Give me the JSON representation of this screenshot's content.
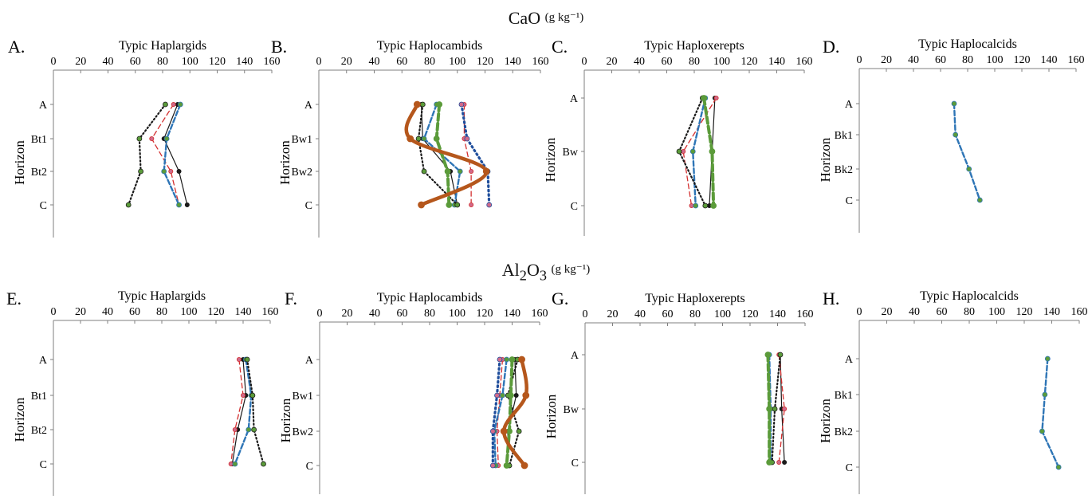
{
  "sections": [
    {
      "name": "CaO",
      "unit": "(g kg⁻¹)",
      "html_name": "CaO"
    },
    {
      "name": "Al2O3",
      "unit": "(g kg⁻¹)",
      "html_name": "Al<sub>2</sub>O<sub>3</sub>"
    }
  ],
  "colors": {
    "axis": "#7f7f7f",
    "s1": "#1a1a1a",
    "s2": "#d32f2f",
    "s3": "#2e75b6",
    "s4": "#5b9b3a",
    "s5": "#1f4e9c",
    "s6": "#b5571c",
    "marker_pink": "#d06a8a"
  },
  "chart_data": [
    {
      "panel": "A.",
      "type": "line",
      "title": "Typic Haplargids",
      "ylabel": "Horizon",
      "xlim": [
        0,
        160
      ],
      "xticks": [
        0,
        20,
        40,
        60,
        80,
        100,
        120,
        140,
        160
      ],
      "horizons": [
        "A",
        "Bt1",
        "Bt2",
        "C"
      ],
      "series": [
        {
          "values": [
            91,
            81,
            92,
            98
          ],
          "style": "solid"
        },
        {
          "values": [
            88,
            72,
            86,
            92
          ],
          "style": "dashed-red"
        },
        {
          "values": [
            93,
            83,
            81,
            92
          ],
          "style": "dashed-blue"
        },
        {
          "values": [
            82,
            63,
            64,
            55
          ],
          "style": "dotted"
        }
      ]
    },
    {
      "panel": "B.",
      "type": "line",
      "title": "Typic Haplocambids",
      "ylabel": "Horizon",
      "xlim": [
        0,
        160
      ],
      "xticks": [
        0,
        20,
        40,
        60,
        80,
        100,
        120,
        140,
        160
      ],
      "horizons": [
        "A",
        "Bw1",
        "Bw2",
        "C"
      ],
      "series": [
        {
          "values": [
            74,
            75,
            95,
            100
          ],
          "style": "solid"
        },
        {
          "values": [
            105,
            105,
            110,
            110
          ],
          "style": "dashed-red"
        },
        {
          "values": [
            85,
            76,
            102,
            98
          ],
          "style": "dashed-blue"
        },
        {
          "values": [
            75,
            72,
            76,
            100
          ],
          "style": "dotted"
        },
        {
          "values": [
            87,
            85,
            93,
            94
          ],
          "style": "thick-green"
        },
        {
          "values": [
            103,
            107,
            122,
            123
          ],
          "style": "dotted-blue"
        },
        {
          "values": [
            71,
            66,
            121,
            74
          ],
          "style": "thick-orange"
        }
      ]
    },
    {
      "panel": "C.",
      "type": "line",
      "title": "Typic Haploxerepts",
      "ylabel": "Horizon",
      "xlim": [
        0,
        160
      ],
      "xticks": [
        0,
        20,
        40,
        60,
        80,
        100,
        120,
        140,
        160
      ],
      "horizons": [
        "A",
        "Bw",
        "C"
      ],
      "series": [
        {
          "values": [
            95,
            93,
            91
          ],
          "style": "solid"
        },
        {
          "values": [
            96,
            72,
            78
          ],
          "style": "dashed-red"
        },
        {
          "values": [
            88,
            79,
            81
          ],
          "style": "dashed-blue"
        },
        {
          "values": [
            86,
            69,
            88
          ],
          "style": "dotted"
        },
        {
          "values": [
            87,
            93,
            94
          ],
          "style": "thick-green"
        }
      ]
    },
    {
      "panel": "D.",
      "type": "line",
      "title": "Typic Haplocalcids",
      "ylabel": "Horizon",
      "xlim": [
        0,
        160
      ],
      "xticks": [
        0,
        20,
        40,
        60,
        80,
        100,
        120,
        140,
        160
      ],
      "horizons": [
        "A",
        "Bk1",
        "Bk2",
        "C"
      ],
      "series": [
        {
          "values": [
            70,
            71,
            81,
            89
          ],
          "style": "dashed-blue"
        }
      ]
    },
    {
      "panel": "E.",
      "type": "line",
      "title": "Typic Haplargids",
      "ylabel": "Horizon",
      "xlim": [
        0,
        160
      ],
      "xticks": [
        0,
        20,
        40,
        60,
        80,
        100,
        120,
        140,
        160
      ],
      "horizons": [
        "A",
        "Bt1",
        "Bt2",
        "C"
      ],
      "series": [
        {
          "values": [
            140,
            142,
            136,
            132
          ],
          "style": "solid"
        },
        {
          "values": [
            137,
            140,
            134,
            131
          ],
          "style": "dashed-red"
        },
        {
          "values": [
            142,
            146,
            144,
            134
          ],
          "style": "dashed-blue"
        },
        {
          "values": [
            143,
            147,
            148,
            155
          ],
          "style": "dotted"
        }
      ]
    },
    {
      "panel": "F.",
      "type": "line",
      "title": "Typic Haplocambids",
      "ylabel": "Horizon",
      "xlim": [
        0,
        160
      ],
      "xticks": [
        0,
        20,
        40,
        60,
        80,
        100,
        120,
        140,
        160
      ],
      "horizons": [
        "A",
        "Bw1",
        "Bw2",
        "C"
      ],
      "series": [
        {
          "values": [
            142,
            143,
            137,
            136
          ],
          "style": "solid"
        },
        {
          "values": [
            133,
            131,
            129,
            130
          ],
          "style": "dashed-red"
        },
        {
          "values": [
            136,
            133,
            127,
            128
          ],
          "style": "dashed-blue"
        },
        {
          "values": [
            144,
            137,
            145,
            138
          ],
          "style": "dotted"
        },
        {
          "values": [
            140,
            139,
            138,
            136
          ],
          "style": "thick-green"
        },
        {
          "values": [
            131,
            129,
            126,
            126
          ],
          "style": "dotted-blue"
        },
        {
          "values": [
            147,
            150,
            134,
            149
          ],
          "style": "thick-orange"
        }
      ]
    },
    {
      "panel": "G.",
      "type": "line",
      "title": "Typic Haploxerepts",
      "ylabel": "Horizon",
      "xlim": [
        0,
        160
      ],
      "xticks": [
        0,
        20,
        40,
        60,
        80,
        100,
        120,
        140,
        160
      ],
      "horizons": [
        "A",
        "Bw",
        "C"
      ],
      "series": [
        {
          "values": [
            142,
            143,
            145
          ],
          "style": "solid"
        },
        {
          "values": [
            141,
            145,
            141
          ],
          "style": "dashed-red"
        },
        {
          "values": [
            134,
            135,
            135
          ],
          "style": "dashed-blue"
        },
        {
          "values": [
            142,
            138,
            136
          ],
          "style": "dotted"
        },
        {
          "values": [
            133,
            134,
            134
          ],
          "style": "thick-green"
        }
      ]
    },
    {
      "panel": "H.",
      "type": "line",
      "title": "Typic Haplocalcids",
      "ylabel": "Horizon",
      "xlim": [
        0,
        160
      ],
      "xticks": [
        0,
        20,
        40,
        60,
        80,
        100,
        120,
        140,
        160
      ],
      "horizons": [
        "A",
        "Bk1",
        "Bk2",
        "C"
      ],
      "series": [
        {
          "values": [
            137,
            135,
            133,
            145
          ],
          "style": "dashed-blue"
        }
      ]
    }
  ]
}
